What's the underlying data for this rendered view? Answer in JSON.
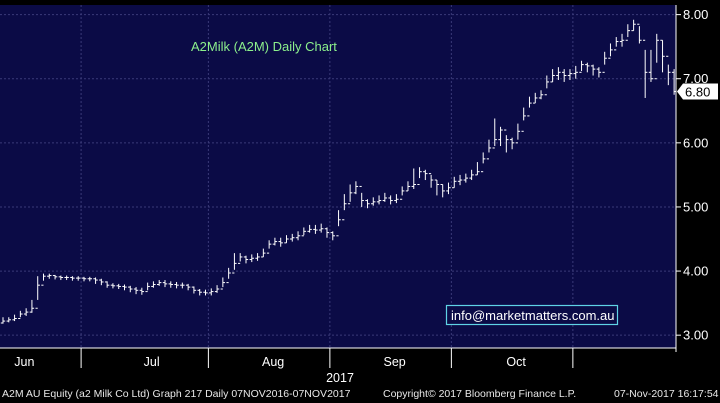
{
  "chart_data": {
    "type": "bar",
    "subtype": "ohlc",
    "title": "A2Milk (A2M) Daily Chart",
    "annotation": "info@marketmatters.com.au",
    "y_axis": {
      "position": "right",
      "ylim": [
        2.8,
        8.15
      ],
      "ticks": [
        "8.00",
        "7.00",
        "6.00",
        "5.00",
        "4.00",
        "3.00"
      ],
      "tick_values": [
        8,
        7,
        6,
        5,
        4,
        3
      ]
    },
    "x_axis": {
      "year_label": "2017",
      "month_labels": [
        {
          "label": "Jun",
          "index": 3
        },
        {
          "label": "Jul",
          "index": 25
        },
        {
          "label": "Aug",
          "index": 46
        },
        {
          "label": "Sep",
          "index": 67
        },
        {
          "label": "Oct",
          "index": 88
        }
      ],
      "month_separators": [
        13.5,
        35.5,
        56.5,
        77.5,
        98.5
      ]
    },
    "last_price": {
      "label": "6.80",
      "value": 6.8
    },
    "grid": true,
    "colors": {
      "background": "#000000",
      "plot_background": "#0b0b46",
      "grid": "#3a3a78",
      "price": "#ffffff",
      "title": "#8cf08c",
      "annotation": "#ffffff",
      "annotation_border": "#5fd3e6",
      "last_price_box": "#ffffff"
    },
    "series": [
      {
        "close": [
          3.22,
          3.24,
          3.26,
          3.33,
          3.36,
          3.42,
          3.78,
          3.92,
          3.93,
          3.91,
          3.9,
          3.9,
          3.89,
          3.89,
          3.88,
          3.88,
          3.86,
          3.83,
          3.78,
          3.77,
          3.76,
          3.75,
          3.72,
          3.7,
          3.68,
          3.76,
          3.79,
          3.82,
          3.8,
          3.79,
          3.78,
          3.78,
          3.75,
          3.7,
          3.67,
          3.66,
          3.68,
          3.72,
          3.82,
          3.97,
          4.12,
          4.22,
          4.18,
          4.2,
          4.22,
          4.28,
          4.42,
          4.46,
          4.44,
          4.5,
          4.52,
          4.55,
          4.62,
          4.65,
          4.64,
          4.66,
          4.6,
          4.55,
          4.8,
          5.05,
          5.22,
          5.32,
          5.1,
          5.05,
          5.08,
          5.1,
          5.14,
          5.1,
          5.12,
          5.25,
          5.32,
          5.35,
          5.55,
          5.52,
          5.42,
          5.35,
          5.25,
          5.3,
          5.4,
          5.42,
          5.45,
          5.5,
          5.55,
          5.75,
          5.92,
          6.05,
          6.2,
          6.05,
          6.0,
          6.18,
          6.42,
          6.62,
          6.7,
          6.75,
          6.95,
          7.05,
          7.1,
          7.05,
          7.08,
          7.1,
          7.22,
          7.2,
          7.15,
          7.1,
          7.32,
          7.45,
          7.58,
          7.6,
          7.75,
          7.85,
          7.6,
          7.1,
          7.0,
          7.6,
          7.35,
          7.1,
          6.8
        ],
        "high": [
          3.28,
          3.28,
          3.32,
          3.38,
          3.42,
          3.55,
          3.92,
          3.96,
          3.96,
          3.94,
          3.93,
          3.93,
          3.92,
          3.92,
          3.91,
          3.91,
          3.9,
          3.88,
          3.84,
          3.81,
          3.8,
          3.79,
          3.77,
          3.75,
          3.74,
          3.82,
          3.84,
          3.86,
          3.86,
          3.84,
          3.83,
          3.82,
          3.8,
          3.76,
          3.72,
          3.71,
          3.73,
          3.78,
          3.9,
          4.05,
          4.28,
          4.28,
          4.24,
          4.26,
          4.28,
          4.35,
          4.48,
          4.52,
          4.52,
          4.56,
          4.58,
          4.62,
          4.68,
          4.72,
          4.72,
          4.74,
          4.68,
          4.62,
          4.95,
          5.2,
          5.35,
          5.4,
          5.22,
          5.12,
          5.15,
          5.18,
          5.22,
          5.18,
          5.2,
          5.32,
          5.4,
          5.6,
          5.62,
          5.58,
          5.5,
          5.42,
          5.35,
          5.38,
          5.47,
          5.5,
          5.52,
          5.58,
          5.7,
          5.85,
          6.05,
          6.38,
          6.25,
          6.12,
          6.08,
          6.3,
          6.55,
          6.72,
          6.78,
          6.82,
          7.05,
          7.15,
          7.18,
          7.15,
          7.15,
          7.2,
          7.28,
          7.25,
          7.22,
          7.18,
          7.42,
          7.55,
          7.65,
          7.7,
          7.85,
          7.92,
          7.82,
          7.45,
          7.45,
          7.7,
          7.6,
          7.22,
          7.15
        ],
        "low": [
          3.18,
          3.2,
          3.22,
          3.28,
          3.3,
          3.35,
          3.55,
          3.85,
          3.88,
          3.87,
          3.86,
          3.86,
          3.85,
          3.85,
          3.84,
          3.84,
          3.8,
          3.78,
          3.74,
          3.73,
          3.72,
          3.7,
          3.67,
          3.64,
          3.63,
          3.7,
          3.74,
          3.77,
          3.75,
          3.74,
          3.73,
          3.73,
          3.7,
          3.65,
          3.62,
          3.62,
          3.62,
          3.66,
          3.75,
          3.88,
          4.02,
          4.15,
          4.12,
          4.14,
          4.16,
          4.22,
          4.35,
          4.4,
          4.38,
          4.44,
          4.46,
          4.48,
          4.56,
          4.6,
          4.58,
          4.6,
          4.52,
          4.48,
          4.7,
          4.95,
          5.08,
          5.2,
          5.0,
          4.98,
          5.02,
          5.04,
          5.08,
          5.04,
          5.06,
          5.18,
          5.25,
          5.28,
          5.45,
          5.42,
          5.3,
          5.18,
          5.15,
          5.2,
          5.3,
          5.34,
          5.38,
          5.42,
          5.5,
          5.68,
          5.85,
          5.95,
          5.95,
          5.85,
          5.9,
          6.05,
          6.35,
          6.55,
          6.62,
          6.68,
          6.85,
          6.95,
          6.98,
          6.95,
          6.98,
          7.0,
          7.12,
          7.1,
          7.05,
          7.02,
          7.22,
          7.35,
          7.5,
          7.5,
          7.65,
          7.75,
          7.55,
          6.7,
          6.95,
          7.25,
          7.1,
          6.9,
          6.75
        ]
      }
    ]
  },
  "footer": {
    "left": "A2M AU Equity (a2 Milk Co Ltd) Graph 217  Daily 07NOV2016-07NOV2017",
    "center": "Copyright© 2017 Bloomberg Finance L.P.",
    "right": "07-Nov-2017 16:17:54"
  }
}
